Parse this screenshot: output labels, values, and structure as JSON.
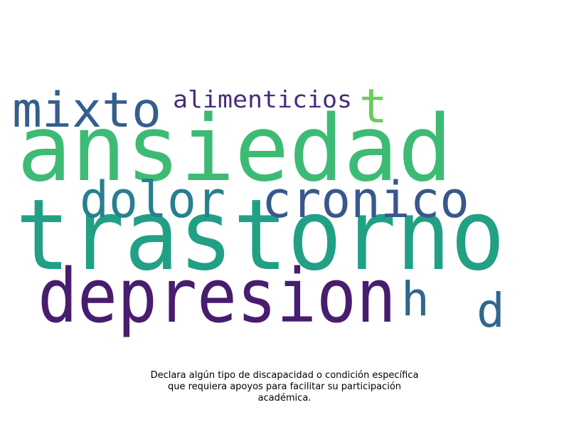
{
  "wordcloud": {
    "words": [
      {
        "text": "trastorno",
        "color": "#21a085"
      },
      {
        "text": "ansiedad",
        "color": "#3dbb74"
      },
      {
        "text": "depresion",
        "color": "#481c6e"
      },
      {
        "text": "dolor",
        "color": "#27808e"
      },
      {
        "text": "cronico",
        "color": "#38588c"
      },
      {
        "text": "mixto",
        "color": "#355e8d"
      },
      {
        "text": "alimenticios",
        "color": "#472c7a"
      },
      {
        "text": "t",
        "color": "#6ccd5a"
      },
      {
        "text": "h",
        "color": "#31668e"
      },
      {
        "text": "d",
        "color": "#31678e"
      }
    ]
  },
  "caption": {
    "line1": "Declara algún tipo de discapacidad o condición específica",
    "line2": "que requiera apoyos para facilitar su participación",
    "line3": "académica."
  }
}
